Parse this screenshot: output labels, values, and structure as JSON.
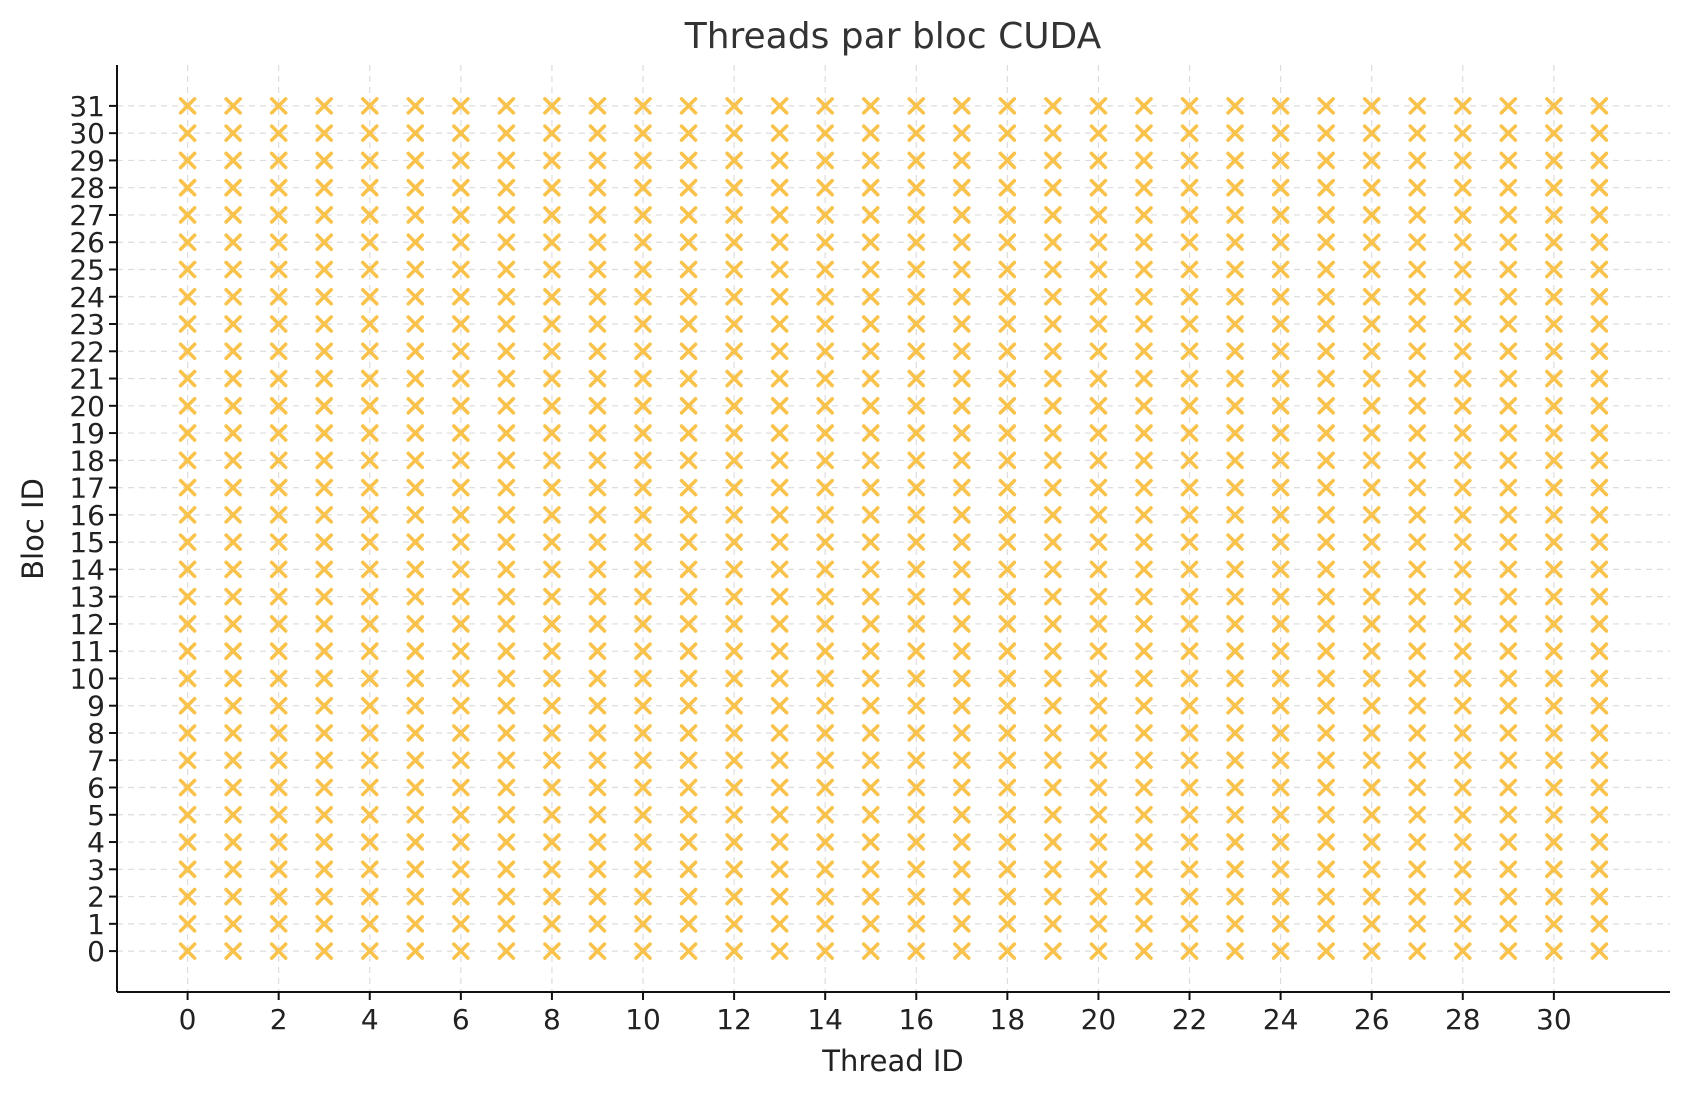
{
  "chart_data": {
    "type": "scatter",
    "title": "Threads par bloc CUDA",
    "xlabel": "Thread ID",
    "ylabel": "Bloc ID",
    "x_values": [
      0,
      1,
      2,
      3,
      4,
      5,
      6,
      7,
      8,
      9,
      10,
      11,
      12,
      13,
      14,
      15,
      16,
      17,
      18,
      19,
      20,
      21,
      22,
      23,
      24,
      25,
      26,
      27,
      28,
      29,
      30,
      31
    ],
    "y_values": [
      0,
      1,
      2,
      3,
      4,
      5,
      6,
      7,
      8,
      9,
      10,
      11,
      12,
      13,
      14,
      15,
      16,
      17,
      18,
      19,
      20,
      21,
      22,
      23,
      24,
      25,
      26,
      27,
      28,
      29,
      30,
      31
    ],
    "points_description": "full grid: one x marker for every (thread, bloc) pair",
    "marker": "x",
    "color": "#f9c24b",
    "xlim": [
      -1.55,
      32.55
    ],
    "ylim": [
      -1.5,
      32.5
    ],
    "xticks": [
      0,
      2,
      4,
      6,
      8,
      10,
      12,
      14,
      16,
      18,
      20,
      22,
      24,
      26,
      28,
      30
    ],
    "yticks": [
      0,
      1,
      2,
      3,
      4,
      5,
      6,
      7,
      8,
      9,
      10,
      11,
      12,
      13,
      14,
      15,
      16,
      17,
      18,
      19,
      20,
      21,
      22,
      23,
      24,
      25,
      26,
      27,
      28,
      29,
      30,
      31
    ],
    "grid": true,
    "legend": "none"
  }
}
